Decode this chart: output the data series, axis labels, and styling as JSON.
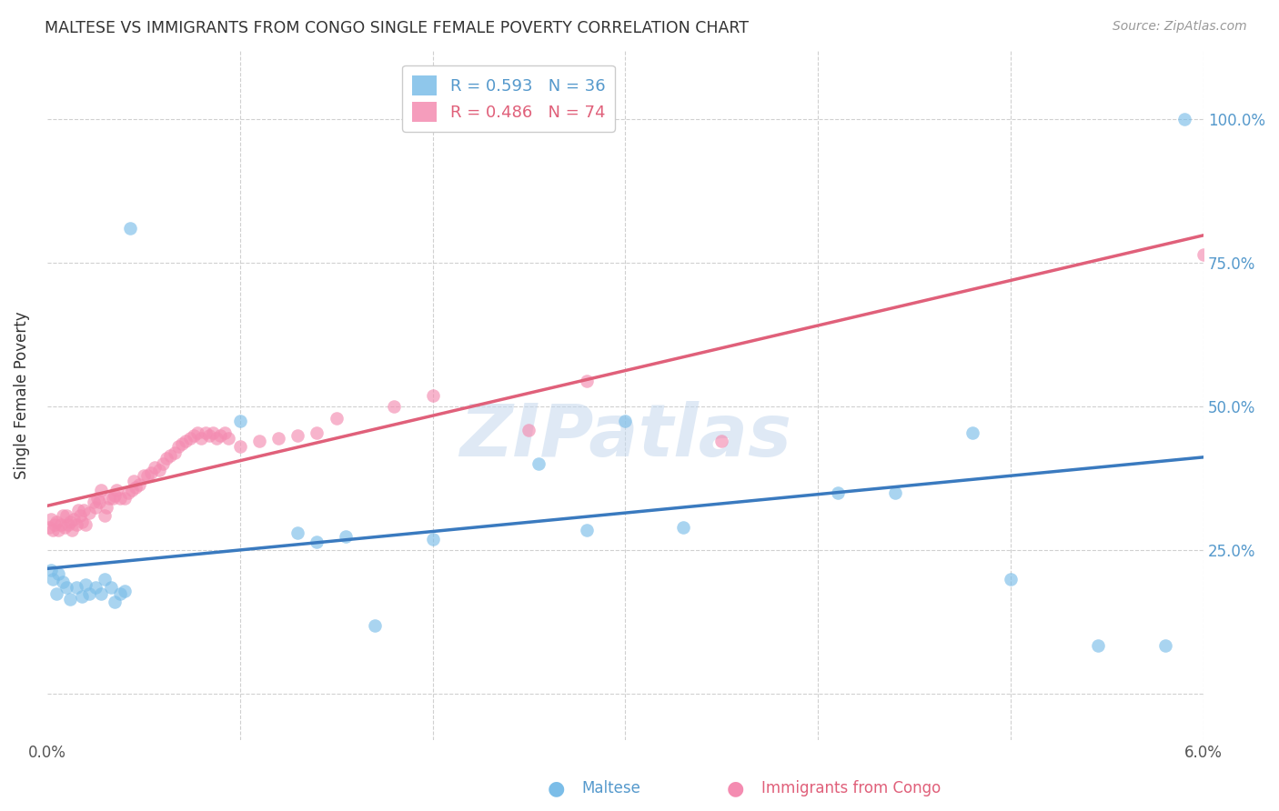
{
  "title": "MALTESE VS IMMIGRANTS FROM CONGO SINGLE FEMALE POVERTY CORRELATION CHART",
  "source": "Source: ZipAtlas.com",
  "ylabel": "Single Female Poverty",
  "y_ticks": [
    0.0,
    0.25,
    0.5,
    0.75,
    1.0
  ],
  "y_tick_labels_right": [
    "",
    "25.0%",
    "50.0%",
    "75.0%",
    "100.0%"
  ],
  "x_lim": [
    0.0,
    0.06
  ],
  "y_lim": [
    -0.08,
    1.12
  ],
  "legend_r1": "R = 0.593",
  "legend_n1": "N = 36",
  "legend_r2": "R = 0.486",
  "legend_n2": "N = 74",
  "maltese_color": "#7bbde8",
  "congo_color": "#f48cb1",
  "maltese_line_color": "#3a7abf",
  "congo_line_color": "#e0607a",
  "maltese_label_color": "#5599cc",
  "congo_label_color": "#e0607a",
  "watermark": "ZIPatlas",
  "maltese_x": [
    0.0002,
    0.0003,
    0.0005,
    0.0006,
    0.0008,
    0.001,
    0.0012,
    0.0015,
    0.0018,
    0.002,
    0.0022,
    0.0025,
    0.0028,
    0.003,
    0.0033,
    0.0035,
    0.0038,
    0.004,
    0.0043,
    0.01,
    0.013,
    0.014,
    0.0155,
    0.017,
    0.02,
    0.0255,
    0.028,
    0.03,
    0.033,
    0.041,
    0.044,
    0.048,
    0.05,
    0.0545,
    0.058,
    0.059
  ],
  "maltese_y": [
    0.215,
    0.2,
    0.175,
    0.21,
    0.195,
    0.185,
    0.165,
    0.185,
    0.17,
    0.19,
    0.175,
    0.185,
    0.175,
    0.2,
    0.185,
    0.16,
    0.175,
    0.18,
    0.81,
    0.475,
    0.28,
    0.265,
    0.275,
    0.12,
    0.27,
    0.4,
    0.285,
    0.475,
    0.29,
    0.35,
    0.35,
    0.455,
    0.2,
    0.085,
    0.085,
    1.0
  ],
  "congo_x": [
    0.0001,
    0.0002,
    0.0003,
    0.0004,
    0.0005,
    0.0006,
    0.0007,
    0.0008,
    0.0009,
    0.001,
    0.0011,
    0.0012,
    0.0013,
    0.0014,
    0.0015,
    0.0016,
    0.0017,
    0.0018,
    0.0019,
    0.002,
    0.0022,
    0.0024,
    0.0025,
    0.0026,
    0.0027,
    0.0028,
    0.003,
    0.0031,
    0.0032,
    0.0034,
    0.0035,
    0.0036,
    0.0038,
    0.004,
    0.0042,
    0.0044,
    0.0045,
    0.0046,
    0.0048,
    0.005,
    0.0052,
    0.0054,
    0.0056,
    0.0058,
    0.006,
    0.0062,
    0.0064,
    0.0066,
    0.0068,
    0.007,
    0.0072,
    0.0074,
    0.0076,
    0.0078,
    0.008,
    0.0082,
    0.0084,
    0.0086,
    0.0088,
    0.009,
    0.0092,
    0.0094,
    0.01,
    0.011,
    0.012,
    0.013,
    0.014,
    0.015,
    0.018,
    0.02,
    0.025,
    0.028,
    0.035,
    0.06
  ],
  "congo_y": [
    0.29,
    0.305,
    0.285,
    0.295,
    0.3,
    0.285,
    0.295,
    0.31,
    0.29,
    0.31,
    0.295,
    0.3,
    0.285,
    0.305,
    0.295,
    0.32,
    0.31,
    0.3,
    0.32,
    0.295,
    0.315,
    0.335,
    0.325,
    0.34,
    0.335,
    0.355,
    0.31,
    0.325,
    0.34,
    0.34,
    0.345,
    0.355,
    0.34,
    0.34,
    0.35,
    0.355,
    0.37,
    0.36,
    0.365,
    0.38,
    0.38,
    0.385,
    0.395,
    0.39,
    0.4,
    0.41,
    0.415,
    0.42,
    0.43,
    0.435,
    0.44,
    0.445,
    0.45,
    0.455,
    0.445,
    0.455,
    0.45,
    0.455,
    0.445,
    0.45,
    0.455,
    0.445,
    0.43,
    0.44,
    0.445,
    0.45,
    0.455,
    0.48,
    0.5,
    0.52,
    0.46,
    0.545,
    0.44,
    0.765
  ]
}
